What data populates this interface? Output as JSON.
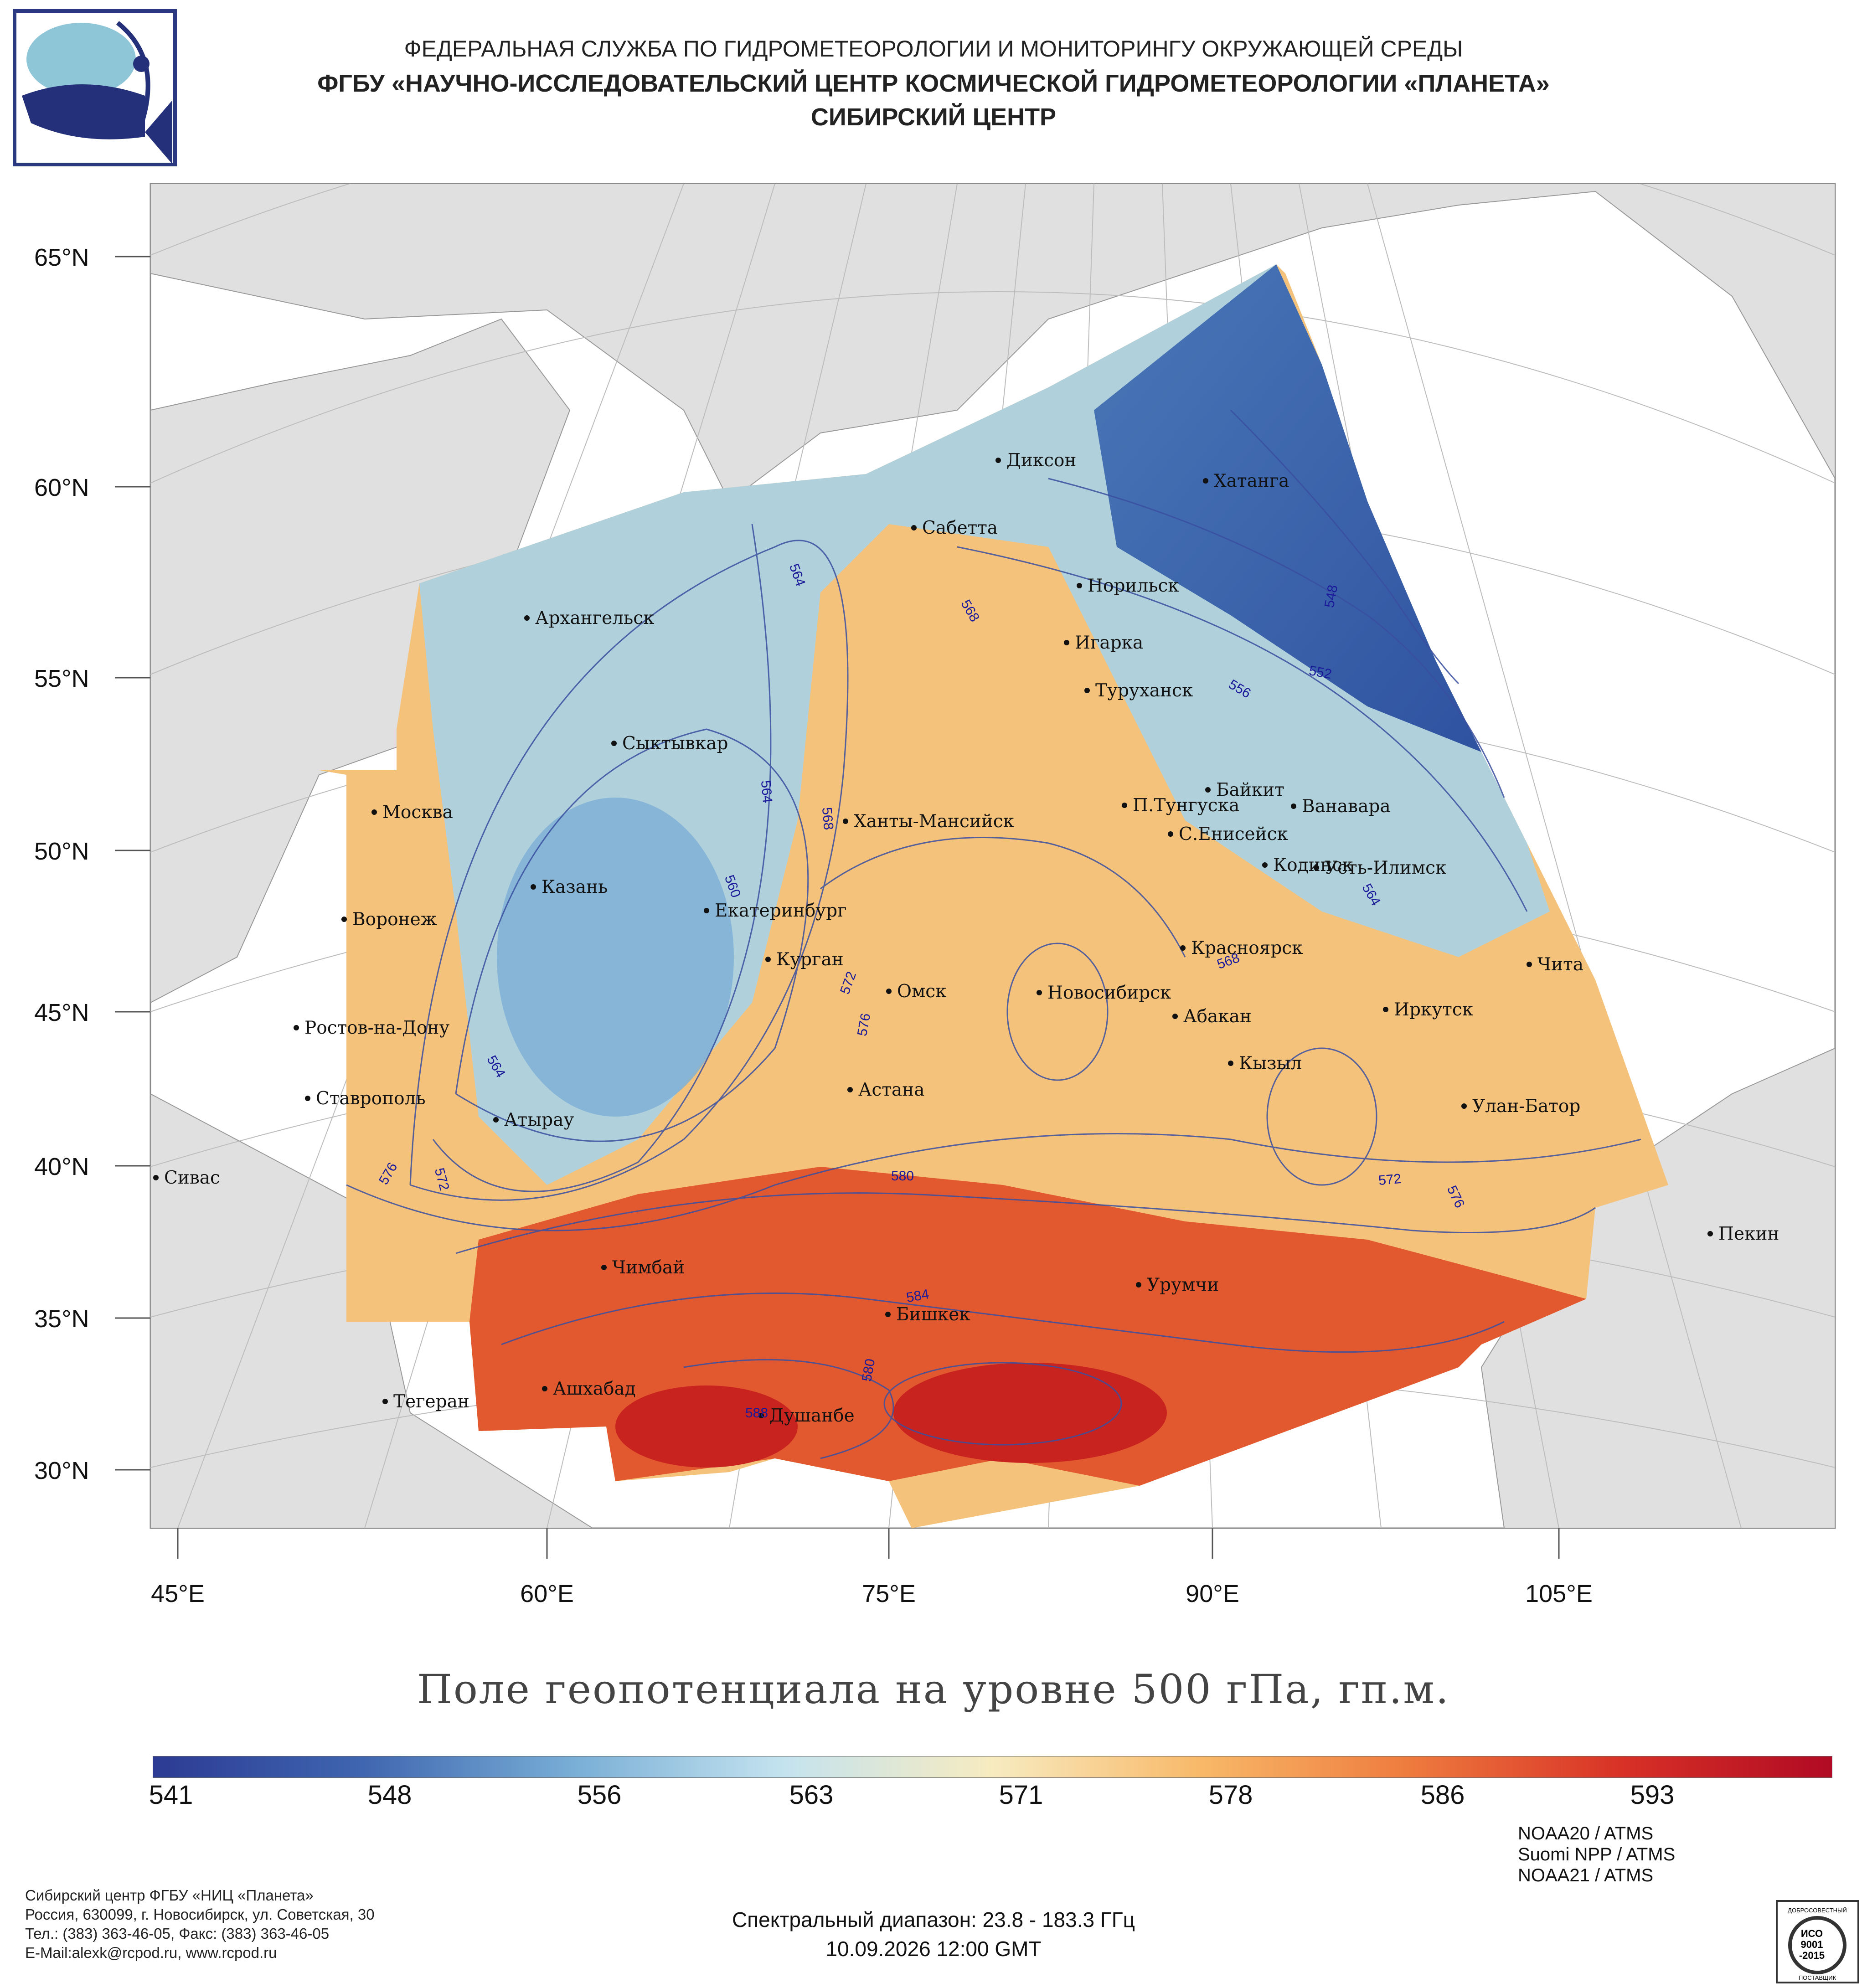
{
  "header": {
    "line1": "ФЕДЕРАЛЬНАЯ СЛУЖБА ПО ГИДРОМЕТЕОРОЛОГИИ И МОНИТОРИНГУ ОКРУЖАЮЩЕЙ СРЕДЫ",
    "line2": "ФГБУ «НАУЧНО-ИССЛЕДОВАТЕЛЬСКИЙ ЦЕНТР КОСМИЧЕСКОЙ ГИДРОМЕТЕОРОЛОГИИ «ПЛАНЕТА»",
    "line3": "СИБИРСКИЙ ЦЕНТР"
  },
  "map": {
    "latitude_labels": [
      "65°N",
      "60°N",
      "55°N",
      "50°N",
      "45°N",
      "40°N",
      "35°N",
      "30°N"
    ],
    "longitude_labels": [
      "45°E",
      "60°E",
      "75°E",
      "90°E",
      "105°E"
    ],
    "cities": [
      "Диксон",
      "Хатанга",
      "Сабетта",
      "Норильск",
      "Архангельск",
      "Игарка",
      "Туруханск",
      "Сыктывкар",
      "Байкит",
      "П.Тунгуска",
      "Ванавара",
      "Москва",
      "Ханты-Мансийск",
      "С.Енисейск",
      "Кодинск",
      "Усть-Илимск",
      "Казань",
      "Екатеринбург",
      "Воронеж",
      "Красноярск",
      "Курган",
      "Чита",
      "Омск",
      "Новосибирск",
      "Ростов-на-Дону",
      "Абакан",
      "Иркутск",
      "Кызыл",
      "Астана",
      "Ставрополь",
      "Улан-Батор",
      "Атырау",
      "Сивас",
      "Пекин",
      "Чимбай",
      "Урумчи",
      "Бишкек",
      "Ашхабад",
      "Тегеран",
      "Душанбе"
    ],
    "contour_labels": [
      "564",
      "568",
      "548",
      "552",
      "556",
      "564",
      "568",
      "560",
      "564",
      "572",
      "576",
      "564",
      "568",
      "576",
      "572",
      "580",
      "572",
      "576",
      "584",
      "580",
      "588"
    ],
    "colors": {
      "land": "#e0e0e0",
      "ocean": "#ffffff",
      "contour": "#3a4fa0",
      "grid": "#c8c8c8"
    }
  },
  "chart_title": "Поле геопотенциала на уровне 500 гПа, гп.м.",
  "colorbar": {
    "labels": [
      "541",
      "548",
      "556",
      "563",
      "571",
      "578",
      "586",
      "593"
    ],
    "colors": [
      "#2c3a93",
      "#3f66b0",
      "#79aed6",
      "#c4e3ef",
      "#f7ebc0",
      "#f8b868",
      "#ee7a3e",
      "#d83126",
      "#b10a24"
    ]
  },
  "footer": {
    "left": [
      "Сибирский центр ФГБУ «НИЦ «Планета»",
      "Россия, 630099, г. Новосибирск, ул. Советская, 30",
      "Тел.: (383) 363-46-05, Факс: (383) 363-46-05",
      "E-Mail:alexk@rcpod.ru, www.rcpod.ru"
    ],
    "spectral": "Спектральный диапазон: 23.8 - 183.3 ГГц",
    "datetime": "10.09.2026 12:00 GMT",
    "satellites": [
      "NOAA20 / ATMS",
      "Suomi NPP / ATMS",
      "NOAA21 / ATMS"
    ],
    "iso_text": [
      "ДОБРОСОВЕСТНЫЙ",
      "ИСО",
      "9001",
      "-2015",
      "ПОСТАВЩИК"
    ]
  }
}
